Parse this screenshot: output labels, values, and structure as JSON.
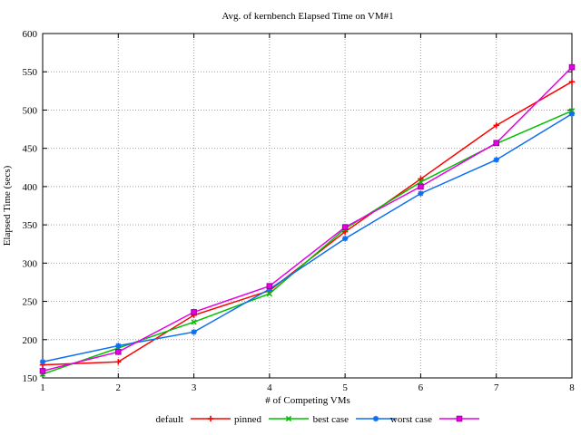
{
  "figure": {
    "background": "#ffffff"
  },
  "chart_data": {
    "type": "line",
    "title": "Avg. of kernbench Elapsed Time on VM#1",
    "xlabel": "# of Competing VMs",
    "ylabel": "Elapsed Time (secs)",
    "xlim": [
      1,
      8
    ],
    "ylim": [
      150,
      600
    ],
    "xticks": [
      1,
      2,
      3,
      4,
      5,
      6,
      7,
      8
    ],
    "yticks": [
      150,
      200,
      250,
      300,
      350,
      400,
      450,
      500,
      550,
      600
    ],
    "grid": "dotted",
    "grid_color": "#a0a0a0",
    "axis_color": "#000000",
    "legend_position": "bottom-center",
    "x": [
      1,
      2,
      3,
      4,
      5,
      6,
      7,
      8
    ],
    "series": [
      {
        "name": "default",
        "color": "#ff0000",
        "marker": "plus",
        "values": [
          167,
          171,
          232,
          264,
          341,
          410,
          480,
          537
        ]
      },
      {
        "name": "pinned",
        "color": "#00bf00",
        "marker": "x",
        "values": [
          155,
          189,
          223,
          260,
          345,
          406,
          456,
          499
        ]
      },
      {
        "name": "best case",
        "color": "#0d6ef2",
        "marker": "asterisk",
        "values": [
          171,
          192,
          210,
          266,
          332,
          391,
          435,
          495
        ]
      },
      {
        "name": "worst case",
        "color": "#e600e6",
        "marker": "square",
        "marker_edge": "#a000a0",
        "values": [
          159,
          184,
          236,
          270,
          347,
          400,
          457,
          556
        ]
      }
    ]
  }
}
